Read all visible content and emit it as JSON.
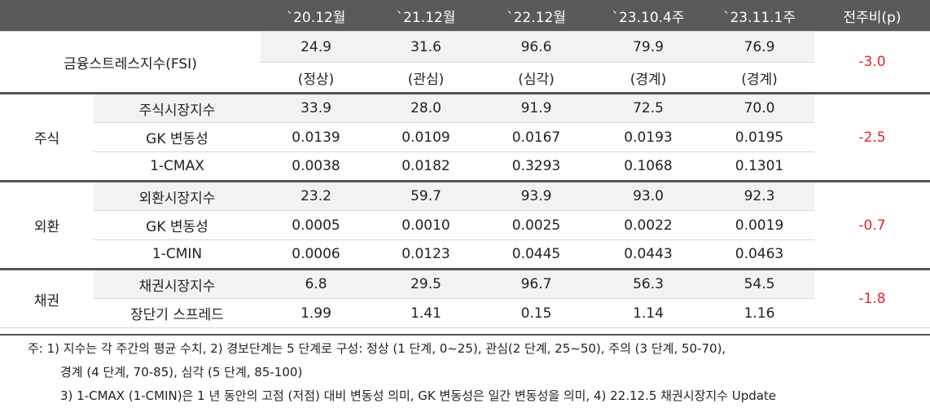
{
  "header": [
    "`20.12월",
    "`21.12월",
    "`22.12월",
    "`23.10.4주",
    "`23.11.1주",
    "전주비(p)"
  ],
  "fsi": {
    "label": "금융스트레스지수(FSI)",
    "values": [
      "24.9",
      "31.6",
      "96.6",
      "79.9",
      "76.9"
    ],
    "levels": [
      "(정상)",
      "(관심)",
      "(심각)",
      "(경계)",
      "(경계)"
    ],
    "change": "-3.0"
  },
  "groups": [
    {
      "label": "주식",
      "change": "-2.5",
      "rows": [
        {
          "label": "주식시장지수",
          "values": [
            "33.9",
            "28.0",
            "91.9",
            "72.5",
            "70.0"
          ]
        },
        {
          "label": "GK 변동성",
          "values": [
            "0.0139",
            "0.0109",
            "0.0167",
            "0.0193",
            "0.0195"
          ]
        },
        {
          "label": "1-CMAX",
          "values": [
            "0.0038",
            "0.0182",
            "0.3293",
            "0.1068",
            "0.1301"
          ]
        }
      ]
    },
    {
      "label": "외환",
      "change": "-0.7",
      "rows": [
        {
          "label": "외환시장지수",
          "values": [
            "23.2",
            "59.7",
            "93.9",
            "93.0",
            "92.3"
          ]
        },
        {
          "label": "GK 변동성",
          "values": [
            "0.0005",
            "0.0010",
            "0.0025",
            "0.0022",
            "0.0019"
          ]
        },
        {
          "label": "1-CMIN",
          "values": [
            "0.0006",
            "0.0123",
            "0.0445",
            "0.0443",
            "0.0463"
          ]
        }
      ]
    },
    {
      "label": "채권",
      "change": "-1.8",
      "rows": [
        {
          "label": "채권시장지수",
          "values": [
            "6.8",
            "29.5",
            "96.7",
            "56.3",
            "54.5"
          ]
        },
        {
          "label": "장단기 스프레드",
          "values": [
            "1.99",
            "1.41",
            "0.15",
            "1.14",
            "1.16"
          ]
        }
      ]
    }
  ],
  "notes": [
    "주: 1) 지수는 각 주간의 평균 수치, 2) 경보단계는 5 단계로 구성: 정상 (1 단계, 0~25), 관심(2 단계, 25~50), 주의 (3 단계, 50-70),",
    "경계 (4 단계, 70-85), 심각 (5 단계, 85-100)",
    "3) 1-CMAX (1-CMIN)은 1 년 동안의 고점 (저점) 대비 변동성 의미, GK 변동성은 일간 변동성을 의미, 4) 22.12.5 채권시장지수 Update"
  ]
}
